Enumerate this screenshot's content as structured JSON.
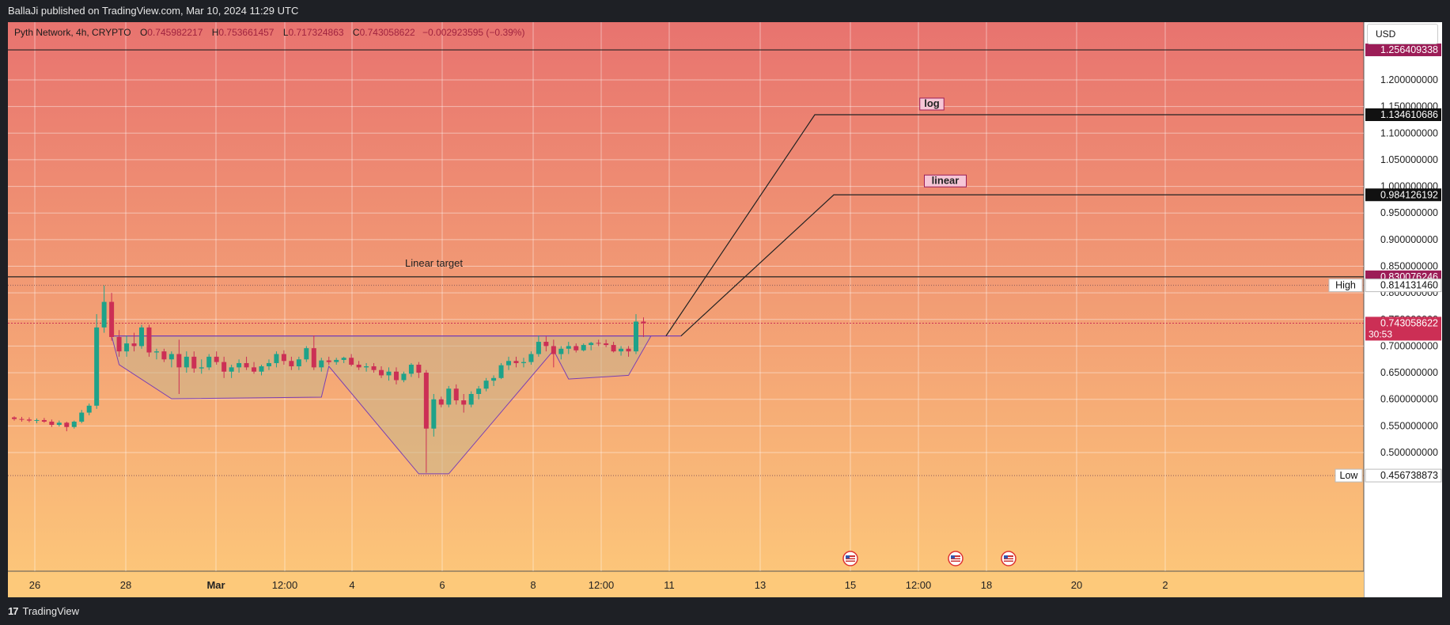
{
  "header": {
    "publish_line": "BallaJi published on TradingView.com, Mar 10, 2024 11:29 UTC"
  },
  "legend": {
    "symbol": "Pyth Network, 4h, CRYPTO",
    "open_label": "O",
    "open": "0.745982217",
    "high_label": "H",
    "high": "0.753661457",
    "low_label": "L",
    "low": "0.717324863",
    "close_label": "C",
    "close": "0.743058622",
    "change": "−0.002923595 (−0.39%)"
  },
  "currency_button": "USD",
  "footer": {
    "logo_glyph": "17",
    "brand": "TradingView"
  },
  "colors": {
    "bg_top": "#e8736f",
    "bg_bottom": "#fdc97a",
    "up": "#1ea289",
    "down": "#cc2f55",
    "pattern_fill": "#c8b48a",
    "pattern_stroke": "#7a3fb3",
    "accent_label": "#9c1d57"
  },
  "chart_data": {
    "type": "candlestick",
    "timeframe": "4h",
    "ylim": [
      0.456738873,
      1.256409338
    ],
    "y_ticks": [
      "1.200000000",
      "1.150000000",
      "1.100000000",
      "1.050000000",
      "1.000000000",
      "0.950000000",
      "0.900000000",
      "0.850000000",
      "0.800000000",
      "0.750000000",
      "0.700000000",
      "0.650000000",
      "0.600000000",
      "0.550000000",
      "0.500000000"
    ],
    "x_ticks": [
      "26",
      "28",
      "Mar",
      "12:00",
      "4",
      "6",
      "8",
      "12:00",
      "11",
      "13",
      "15",
      "12:00",
      "18",
      "20",
      "2"
    ],
    "price_labels": [
      {
        "value": "1.256409338",
        "style": "accent"
      },
      {
        "value": "1.134610686",
        "style": "black"
      },
      {
        "value": "0.984126192",
        "style": "black"
      },
      {
        "value": "0.830076246",
        "style": "accent"
      },
      {
        "tag": "High",
        "value": "0.814131460",
        "style": "white"
      },
      {
        "value": "0.743058622",
        "sub": "30:53",
        "style": "red"
      },
      {
        "tag": "Low",
        "value": "0.456738873",
        "style": "white"
      }
    ],
    "annotations": {
      "log_target": {
        "text": "log",
        "value": 1.134610686
      },
      "linear_target": {
        "text": "linear",
        "value": 0.984126192
      },
      "linear_label": {
        "text": "Linear target",
        "value": 0.830076246
      },
      "neckline": 0.719
    },
    "candles": [
      [
        0.566,
        0.568,
        0.56,
        0.563
      ],
      [
        0.563,
        0.567,
        0.558,
        0.562
      ],
      [
        0.562,
        0.566,
        0.557,
        0.56
      ],
      [
        0.56,
        0.564,
        0.555,
        0.561
      ],
      [
        0.561,
        0.565,
        0.556,
        0.558
      ],
      [
        0.558,
        0.562,
        0.548,
        0.552
      ],
      [
        0.552,
        0.56,
        0.549,
        0.556
      ],
      [
        0.556,
        0.558,
        0.54,
        0.548
      ],
      [
        0.548,
        0.56,
        0.545,
        0.558
      ],
      [
        0.558,
        0.58,
        0.555,
        0.575
      ],
      [
        0.575,
        0.592,
        0.57,
        0.588
      ],
      [
        0.588,
        0.76,
        0.582,
        0.735
      ],
      [
        0.735,
        0.814,
        0.725,
        0.783
      ],
      [
        0.783,
        0.8,
        0.71,
        0.717
      ],
      [
        0.717,
        0.73,
        0.68,
        0.69
      ],
      [
        0.69,
        0.72,
        0.68,
        0.705
      ],
      [
        0.705,
        0.725,
        0.69,
        0.7
      ],
      [
        0.7,
        0.74,
        0.695,
        0.735
      ],
      [
        0.735,
        0.74,
        0.68,
        0.688
      ],
      [
        0.688,
        0.695,
        0.675,
        0.69
      ],
      [
        0.69,
        0.695,
        0.67,
        0.675
      ],
      [
        0.675,
        0.69,
        0.66,
        0.685
      ],
      [
        0.685,
        0.712,
        0.61,
        0.66
      ],
      [
        0.66,
        0.69,
        0.65,
        0.68
      ],
      [
        0.68,
        0.69,
        0.65,
        0.658
      ],
      [
        0.658,
        0.675,
        0.648,
        0.66
      ],
      [
        0.66,
        0.685,
        0.655,
        0.68
      ],
      [
        0.68,
        0.69,
        0.665,
        0.67
      ],
      [
        0.67,
        0.68,
        0.64,
        0.652
      ],
      [
        0.652,
        0.665,
        0.64,
        0.66
      ],
      [
        0.66,
        0.675,
        0.65,
        0.668
      ],
      [
        0.668,
        0.68,
        0.655,
        0.66
      ],
      [
        0.66,
        0.67,
        0.648,
        0.652
      ],
      [
        0.652,
        0.665,
        0.645,
        0.662
      ],
      [
        0.662,
        0.675,
        0.655,
        0.668
      ],
      [
        0.668,
        0.69,
        0.66,
        0.685
      ],
      [
        0.685,
        0.692,
        0.665,
        0.672
      ],
      [
        0.672,
        0.68,
        0.655,
        0.662
      ],
      [
        0.662,
        0.68,
        0.655,
        0.675
      ],
      [
        0.675,
        0.7,
        0.67,
        0.696
      ],
      [
        0.696,
        0.72,
        0.655,
        0.66
      ],
      [
        0.66,
        0.678,
        0.652,
        0.673
      ],
      [
        0.673,
        0.68,
        0.665,
        0.67
      ],
      [
        0.67,
        0.678,
        0.665,
        0.674
      ],
      [
        0.674,
        0.68,
        0.668,
        0.678
      ],
      [
        0.678,
        0.685,
        0.662,
        0.665
      ],
      [
        0.665,
        0.672,
        0.655,
        0.66
      ],
      [
        0.66,
        0.668,
        0.652,
        0.662
      ],
      [
        0.662,
        0.668,
        0.65,
        0.655
      ],
      [
        0.655,
        0.662,
        0.64,
        0.645
      ],
      [
        0.645,
        0.66,
        0.635,
        0.652
      ],
      [
        0.652,
        0.66,
        0.628,
        0.636
      ],
      [
        0.636,
        0.652,
        0.632,
        0.648
      ],
      [
        0.648,
        0.668,
        0.642,
        0.665
      ],
      [
        0.665,
        0.67,
        0.64,
        0.65
      ],
      [
        0.65,
        0.655,
        0.462,
        0.545
      ],
      [
        0.545,
        0.61,
        0.53,
        0.6
      ],
      [
        0.6,
        0.605,
        0.585,
        0.59
      ],
      [
        0.59,
        0.625,
        0.585,
        0.62
      ],
      [
        0.62,
        0.628,
        0.59,
        0.598
      ],
      [
        0.598,
        0.61,
        0.575,
        0.59
      ],
      [
        0.59,
        0.615,
        0.585,
        0.61
      ],
      [
        0.61,
        0.625,
        0.6,
        0.62
      ],
      [
        0.62,
        0.64,
        0.615,
        0.635
      ],
      [
        0.635,
        0.645,
        0.625,
        0.64
      ],
      [
        0.64,
        0.668,
        0.638,
        0.664
      ],
      [
        0.664,
        0.68,
        0.655,
        0.672
      ],
      [
        0.672,
        0.68,
        0.66,
        0.668
      ],
      [
        0.668,
        0.678,
        0.66,
        0.67
      ],
      [
        0.67,
        0.69,
        0.665,
        0.685
      ],
      [
        0.685,
        0.72,
        0.68,
        0.708
      ],
      [
        0.708,
        0.718,
        0.69,
        0.7
      ],
      [
        0.7,
        0.712,
        0.66,
        0.685
      ],
      [
        0.685,
        0.7,
        0.675,
        0.695
      ],
      [
        0.695,
        0.708,
        0.685,
        0.7
      ],
      [
        0.7,
        0.705,
        0.688,
        0.692
      ],
      [
        0.692,
        0.705,
        0.69,
        0.702
      ],
      [
        0.702,
        0.708,
        0.692,
        0.706
      ],
      [
        0.706,
        0.712,
        0.7,
        0.705
      ],
      [
        0.705,
        0.712,
        0.698,
        0.702
      ],
      [
        0.702,
        0.708,
        0.688,
        0.69
      ],
      [
        0.69,
        0.7,
        0.682,
        0.695
      ],
      [
        0.695,
        0.7,
        0.68,
        0.69
      ],
      [
        0.69,
        0.76,
        0.685,
        0.746
      ],
      [
        0.746,
        0.754,
        0.717,
        0.743
      ]
    ]
  }
}
